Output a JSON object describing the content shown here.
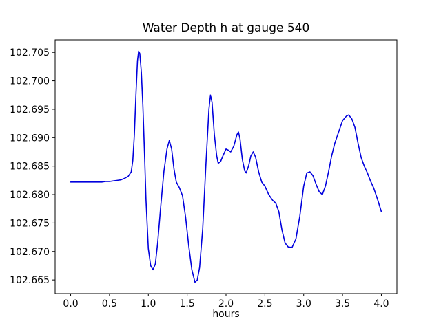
{
  "title": "Water Depth h at gauge 540",
  "chart_data": {
    "type": "line",
    "title": "Water Depth h at gauge 540",
    "xlabel": "hours",
    "ylabel": "",
    "grid": false,
    "legend": null,
    "line_color": "#0000dd",
    "xlim": [
      -0.2,
      4.2
    ],
    "ylim": [
      102.6626,
      102.7072
    ],
    "x_ticks": [
      0.0,
      0.5,
      1.0,
      1.5,
      2.0,
      2.5,
      3.0,
      3.5,
      4.0
    ],
    "x_tick_labels": [
      "0.0",
      "0.5",
      "1.0",
      "1.5",
      "2.0",
      "2.5",
      "3.0",
      "3.5",
      "4.0"
    ],
    "y_ticks": [
      102.665,
      102.67,
      102.675,
      102.68,
      102.685,
      102.69,
      102.695,
      102.7,
      102.705
    ],
    "y_tick_labels": [
      "102.665",
      "102.670",
      "102.675",
      "102.680",
      "102.685",
      "102.690",
      "102.695",
      "102.700",
      "102.705"
    ],
    "series": [
      {
        "name": "h",
        "x": [
          0.0,
          0.05,
          0.1,
          0.15,
          0.2,
          0.25,
          0.3,
          0.35,
          0.4,
          0.45,
          0.5,
          0.55,
          0.6,
          0.65,
          0.7,
          0.74,
          0.78,
          0.8,
          0.82,
          0.84,
          0.86,
          0.875,
          0.89,
          0.91,
          0.93,
          0.95,
          0.97,
          1.0,
          1.03,
          1.06,
          1.09,
          1.12,
          1.16,
          1.2,
          1.24,
          1.27,
          1.3,
          1.33,
          1.36,
          1.4,
          1.44,
          1.48,
          1.52,
          1.56,
          1.6,
          1.63,
          1.66,
          1.7,
          1.74,
          1.78,
          1.8,
          1.82,
          1.85,
          1.88,
          1.9,
          1.93,
          1.96,
          2.0,
          2.03,
          2.06,
          2.1,
          2.14,
          2.16,
          2.18,
          2.21,
          2.24,
          2.26,
          2.29,
          2.32,
          2.35,
          2.38,
          2.42,
          2.46,
          2.5,
          2.55,
          2.6,
          2.64,
          2.68,
          2.72,
          2.76,
          2.8,
          2.85,
          2.9,
          2.95,
          3.0,
          3.04,
          3.08,
          3.12,
          3.16,
          3.2,
          3.24,
          3.28,
          3.32,
          3.36,
          3.4,
          3.45,
          3.5,
          3.55,
          3.58,
          3.62,
          3.66,
          3.7,
          3.74,
          3.78,
          3.82,
          3.86,
          3.9,
          3.95,
          4.0
        ],
        "y": [
          102.6822,
          102.6822,
          102.6822,
          102.6822,
          102.6822,
          102.6822,
          102.6822,
          102.6822,
          102.6822,
          102.6823,
          102.6823,
          102.6824,
          102.6825,
          102.6826,
          102.6829,
          102.6832,
          102.684,
          102.686,
          102.6905,
          102.6975,
          102.7035,
          102.7052,
          102.7048,
          102.7015,
          102.6955,
          102.6875,
          102.679,
          102.6705,
          102.6675,
          102.6668,
          102.6678,
          102.6715,
          102.678,
          102.684,
          102.688,
          102.6895,
          102.688,
          102.6845,
          102.6822,
          102.6812,
          102.6798,
          102.676,
          102.671,
          102.6668,
          102.6646,
          102.665,
          102.6672,
          102.674,
          102.685,
          102.695,
          102.6975,
          102.6962,
          102.6905,
          102.6868,
          102.6855,
          102.6858,
          102.6868,
          102.688,
          102.6878,
          102.6875,
          102.6885,
          102.6905,
          102.691,
          102.6898,
          102.6862,
          102.6842,
          102.6838,
          102.685,
          102.6868,
          102.6875,
          102.6866,
          102.684,
          102.6822,
          102.6815,
          102.68,
          102.679,
          102.6785,
          102.677,
          102.6738,
          102.6715,
          102.6708,
          102.6707,
          102.6722,
          102.6762,
          102.6815,
          102.6838,
          102.684,
          102.6833,
          102.6818,
          102.6805,
          102.68,
          102.6815,
          102.684,
          102.6868,
          102.689,
          102.691,
          102.693,
          102.6938,
          102.694,
          102.6933,
          102.6918,
          102.689,
          102.6865,
          102.685,
          102.6838,
          102.6824,
          102.6812,
          102.6792,
          102.677
        ]
      }
    ]
  }
}
